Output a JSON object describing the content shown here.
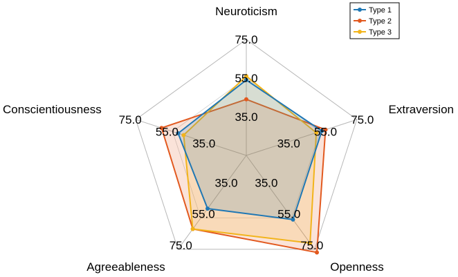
{
  "chart_data": {
    "type": "radar",
    "axes": [
      "Neuroticism",
      "Extraversion",
      "Openness",
      "Agreeableness",
      "Conscientiousness"
    ],
    "radial_range": [
      15,
      75
    ],
    "tick_labels": [
      "35.0",
      "55.0",
      "75.0"
    ],
    "tick_values": [
      35,
      55,
      75
    ],
    "grid": true,
    "legend_position": "top-right",
    "series": [
      {
        "name": "Type 1",
        "color": "#1f77b4",
        "values": [
          54,
          56,
          56,
          49,
          52
        ]
      },
      {
        "name": "Type 2",
        "color": "#e2591f",
        "values": [
          44,
          58,
          77,
          62,
          61
        ]
      },
      {
        "name": "Type 3",
        "color": "#f2b41b",
        "values": [
          56,
          53,
          71,
          62,
          49
        ]
      }
    ]
  }
}
